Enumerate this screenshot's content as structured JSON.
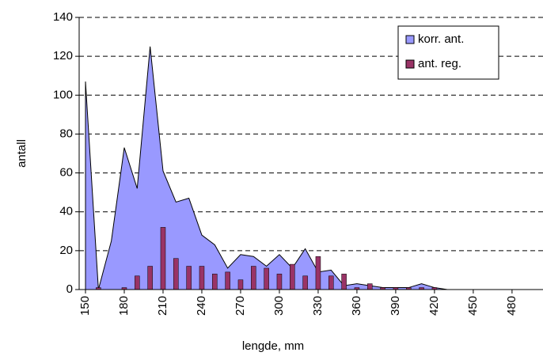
{
  "chart_data": {
    "type": "area-bar",
    "x_label": "lengde, mm",
    "y_label": "antall",
    "categories": [
      "150",
      null,
      null,
      "180",
      null,
      null,
      "210",
      null,
      null,
      "240",
      null,
      null,
      "270",
      null,
      null,
      "300",
      null,
      null,
      "330",
      null,
      null,
      "360",
      null,
      null,
      "390",
      null,
      null,
      "420",
      null,
      null,
      "450",
      null,
      null,
      "480",
      null,
      null
    ],
    "series": [
      {
        "name": "korr. ant.",
        "type": "area",
        "color": "#9999ff",
        "values": [
          107,
          0,
          25,
          73,
          52,
          125,
          61,
          45,
          47,
          28,
          23,
          11,
          18,
          17,
          12,
          18,
          11,
          21,
          9,
          10,
          2,
          3,
          2,
          1,
          1,
          1,
          3,
          1,
          0,
          0,
          0,
          0,
          0,
          0,
          0,
          0
        ]
      },
      {
        "name": "ant. reg.",
        "type": "bar",
        "color": "#993366",
        "values": [
          0,
          1,
          0,
          1,
          7,
          12,
          32,
          16,
          12,
          12,
          8,
          9,
          5,
          12,
          11,
          8,
          13,
          7,
          17,
          7,
          8,
          1,
          3,
          1,
          1,
          1,
          1,
          1,
          0,
          0,
          0,
          0,
          0,
          0,
          0,
          0
        ]
      }
    ],
    "ylim": [
      0,
      140
    ],
    "yticks": [
      0,
      20,
      40,
      60,
      80,
      100,
      120,
      140
    ],
    "grid": true,
    "legend": "upper right"
  }
}
